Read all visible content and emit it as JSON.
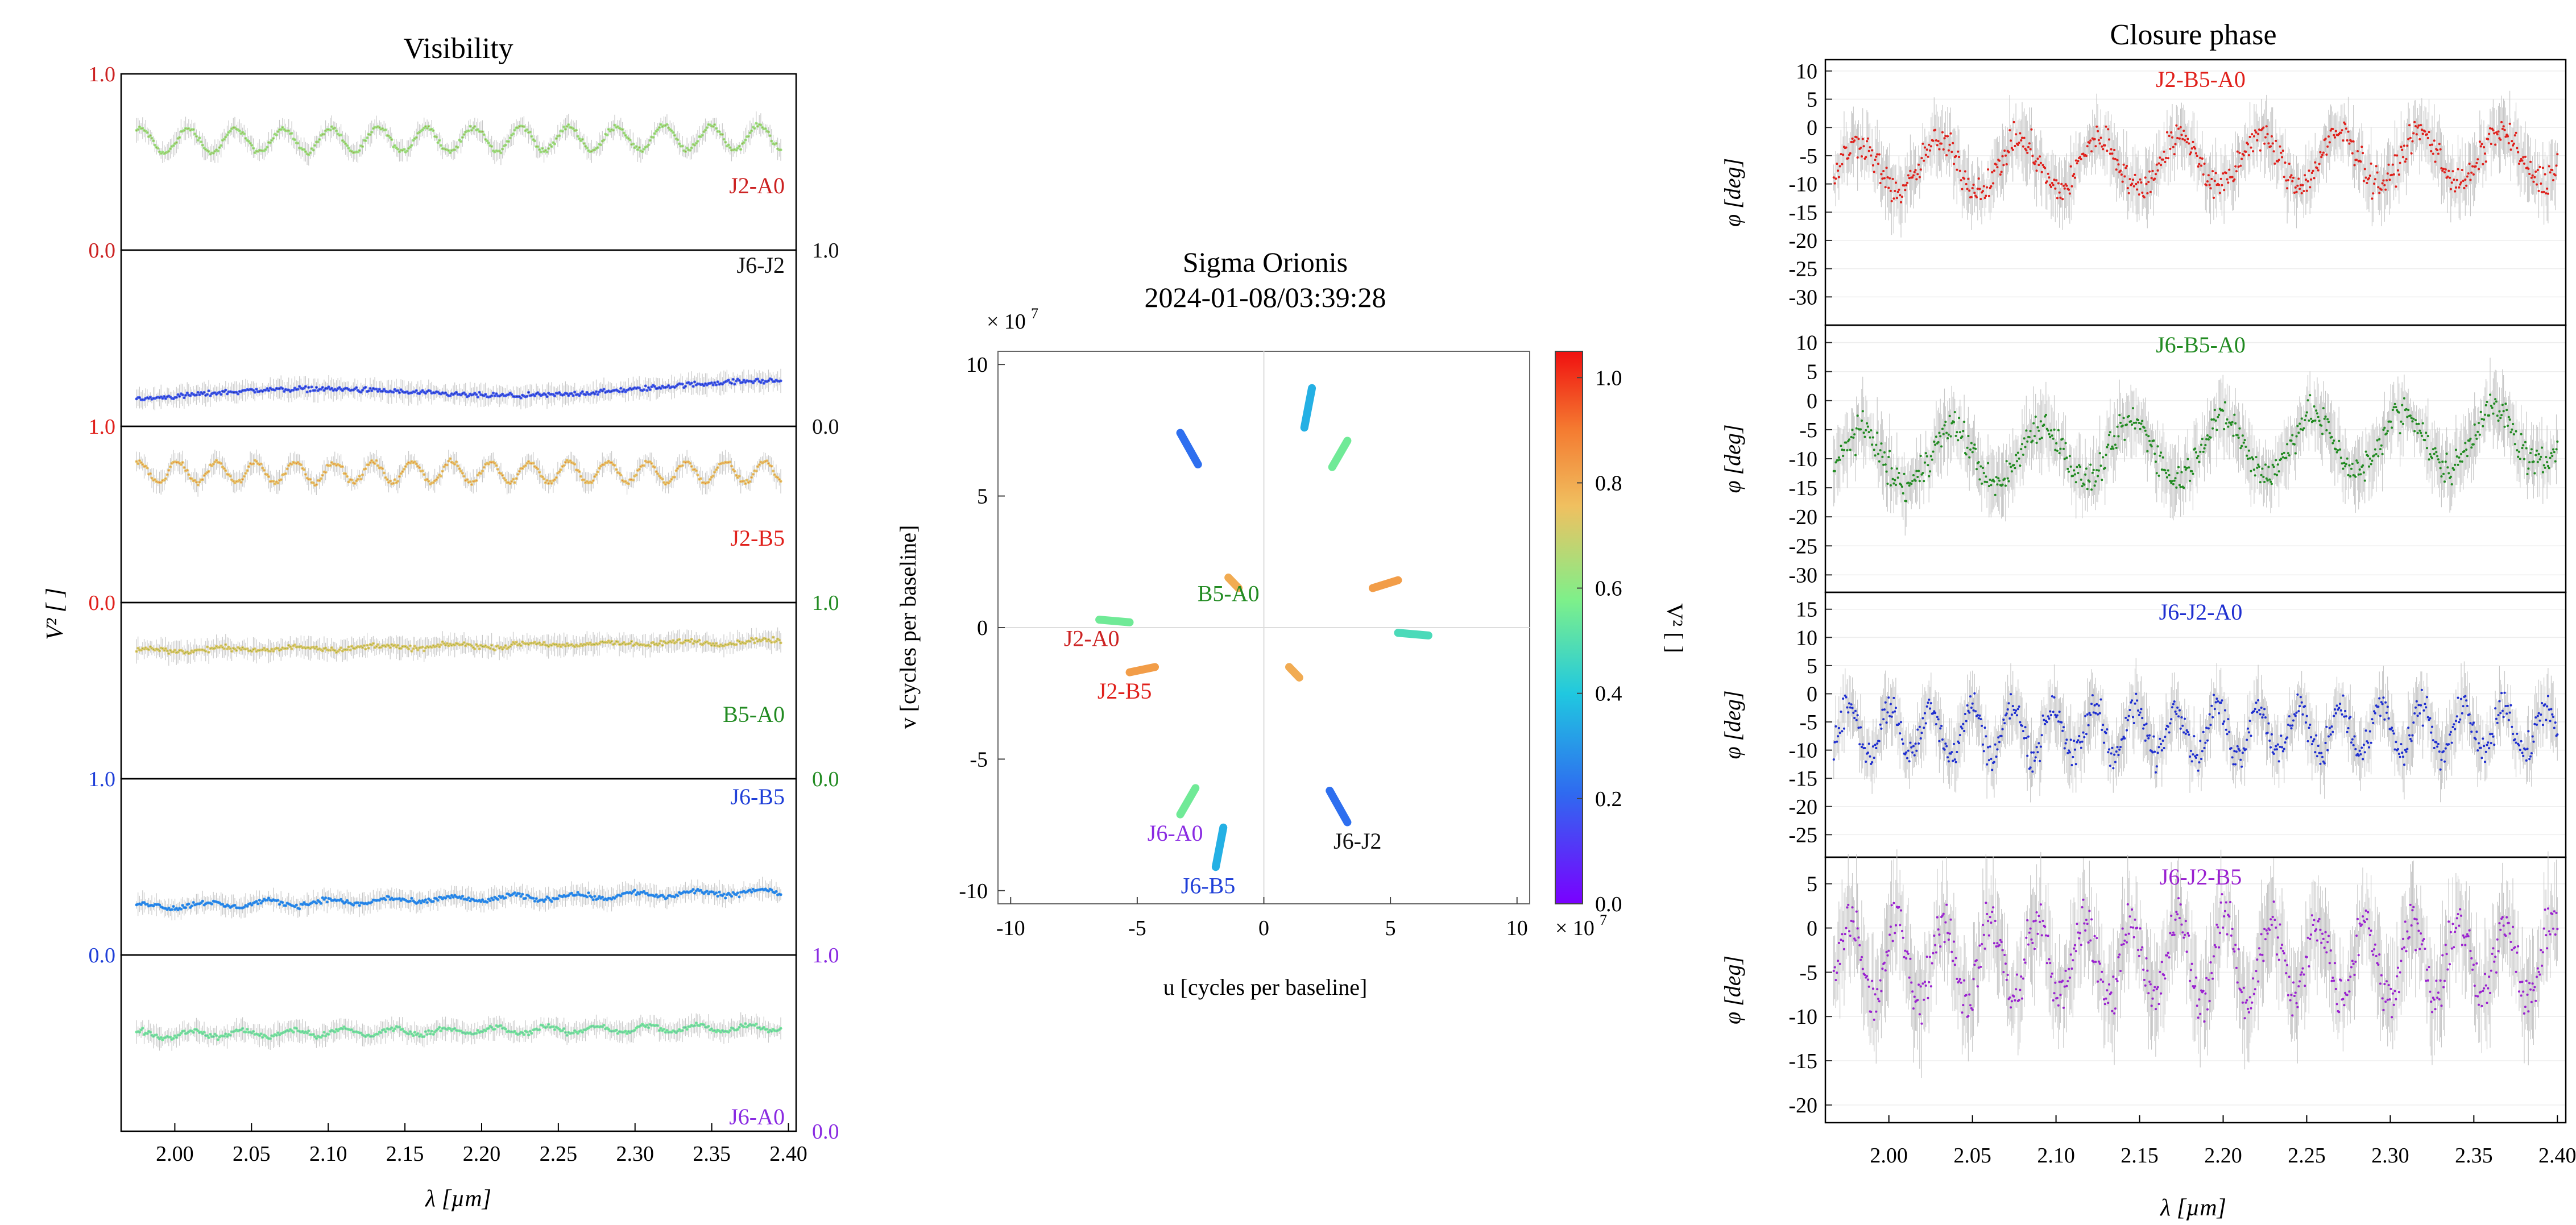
{
  "colors": {
    "J2-A0": "#cc2222",
    "J6-J2": "#111111",
    "J2-B5": "#e0201b",
    "B5-A0": "#228b22",
    "J6-B5": "#1f3fd8",
    "J6-A0": "#8a2be2",
    "cp_J2-B5-A0": "#e0201b",
    "cp_J6-B5-A0": "#228b22",
    "cp_J6-J2-A0": "#1f2fd0",
    "cp_J6-J2-B5": "#9a22d0",
    "errorbar": "#c8c8c8",
    "axis": "#000000"
  },
  "chart_data": [
    {
      "type": "scatter",
      "title": "Visibility",
      "xlabel": "λ [µm]",
      "ylabel": "V² [ ]",
      "xlim": [
        1.965,
        2.405
      ],
      "x_ticks": [
        "2.00",
        "2.05",
        "2.10",
        "2.15",
        "2.20",
        "2.25",
        "2.30",
        "2.35",
        "2.40"
      ],
      "grid": false,
      "panels": [
        {
          "name": "J2-A0",
          "color_key": "J2-A0",
          "ylim": [
            0.0,
            1.0
          ],
          "tick_side": "left",
          "tick_labels": [
            "0.0",
            "1.0"
          ],
          "mean_v2": 0.62,
          "amplitude": 0.07,
          "period_um": 0.031,
          "trend": 0.02
        },
        {
          "name": "J6-J2",
          "color_key": "J6-J2",
          "ylim": [
            0.0,
            1.0
          ],
          "tick_side": "right",
          "tick_labels": [
            "0.0",
            "1.0"
          ],
          "mean_v2": 0.17,
          "amplitude": 0.0,
          "period_um": 0.2,
          "trend": 0.06,
          "wave": 0.03
        },
        {
          "name": "J2-B5",
          "color_key": "J2-B5",
          "ylim": [
            0.0,
            1.0
          ],
          "tick_side": "left",
          "tick_labels": [
            "0.0",
            "1.0"
          ],
          "mean_v2": 0.74,
          "amplitude": 0.06,
          "period_um": 0.0255,
          "trend": 0.0
        },
        {
          "name": "B5-A0",
          "color_key": "B5-A0",
          "ylim": [
            0.0,
            1.0
          ],
          "tick_side": "right",
          "tick_labels": [
            "0.0",
            "1.0"
          ],
          "mean_v2": 0.73,
          "amplitude": 0.01,
          "period_um": 0.05,
          "trend": 0.05
        },
        {
          "name": "J6-B5",
          "color_key": "J6-B5",
          "ylim": [
            0.0,
            1.0
          ],
          "tick_side": "left",
          "tick_labels": [
            "0.0",
            "1.0"
          ],
          "mean_v2": 0.28,
          "amplitude": 0.015,
          "period_um": 0.04,
          "trend": 0.08
        },
        {
          "name": "J6-A0",
          "color_key": "J6-A0",
          "ylim": [
            0.0,
            1.0
          ],
          "tick_side": "right",
          "tick_labels": [
            "0.0",
            "1.0"
          ],
          "mean_v2": 0.55,
          "amplitude": 0.02,
          "period_um": 0.033,
          "trend": 0.04
        }
      ]
    },
    {
      "type": "scatter",
      "title": "Sigma Orionis",
      "subtitle": "2024-01-08/03:39:28",
      "xlabel": "u [cycles per baseline]",
      "ylabel": "v [cycles per baseline]",
      "scale_label": "× 10",
      "scale_exp": "7",
      "xlim": [
        -10.5,
        10.5
      ],
      "ylim": [
        -10.5,
        10.5
      ],
      "x_ticks": [
        -10,
        -5,
        0,
        5,
        10
      ],
      "y_ticks": [
        -10,
        -5,
        0,
        5,
        10
      ],
      "colorbar": {
        "label": "V² [ ]",
        "range": [
          0.0,
          1.05
        ],
        "ticks": [
          "0.0",
          "0.2",
          "0.4",
          "0.6",
          "0.8",
          "1.0"
        ]
      },
      "tracks": [
        {
          "u0": 1.9,
          "v0": 9.1,
          "u1": 1.6,
          "v1": 7.6,
          "v2s": 0.35
        },
        {
          "u0": 3.3,
          "v0": 7.1,
          "u1": 2.7,
          "v1": 6.1,
          "v2s": 0.55
        },
        {
          "u0": -3.3,
          "v0": 7.4,
          "u1": -2.6,
          "v1": 6.2,
          "v2s": 0.22
        },
        {
          "u0": -1.4,
          "v0": 1.9,
          "u1": -1.0,
          "v1": 1.5,
          "v2s": 0.8
        },
        {
          "u0": 4.3,
          "v0": 1.5,
          "u1": 5.3,
          "v1": 1.8,
          "v2s": 0.83
        },
        {
          "u0": 5.3,
          "v0": -0.2,
          "u1": 6.5,
          "v1": -0.3,
          "v2s": 0.48
        },
        {
          "u0": -6.5,
          "v0": 0.3,
          "u1": -5.3,
          "v1": 0.2,
          "v2s": 0.55
        },
        {
          "u0": -5.3,
          "v0": -1.7,
          "u1": -4.3,
          "v1": -1.5,
          "v2s": 0.83
        },
        {
          "u0": 1.0,
          "v0": -1.5,
          "u1": 1.4,
          "v1": -1.9,
          "v2s": 0.8
        },
        {
          "u0": -2.7,
          "v0": -6.1,
          "u1": -3.3,
          "v1": -7.1,
          "v2s": 0.55
        },
        {
          "u0": -1.6,
          "v0": -7.6,
          "u1": -1.9,
          "v1": -9.1,
          "v2s": 0.35
        },
        {
          "u0": 2.6,
          "v0": -6.2,
          "u1": 3.3,
          "v1": -7.4,
          "v2s": 0.22
        }
      ],
      "labels": [
        {
          "text": "B5-A0",
          "u": -1.4,
          "v": 1.0,
          "color_key": "B5-A0"
        },
        {
          "text": "J2-A0",
          "u": -6.8,
          "v": -0.7,
          "color_key": "J2-A0"
        },
        {
          "text": "J2-B5",
          "u": -5.5,
          "v": -2.7,
          "color_key": "J2-B5"
        },
        {
          "text": "J6-A0",
          "u": -3.5,
          "v": -8.1,
          "color_key": "J6-A0"
        },
        {
          "text": "J6-B5",
          "u": -2.2,
          "v": -10.1,
          "color_key": "J6-B5"
        },
        {
          "text": "J6-J2",
          "u": 3.7,
          "v": -8.4,
          "color_key": "J6-J2"
        }
      ]
    },
    {
      "type": "scatter",
      "title": "Closure phase",
      "xlabel": "λ [µm]",
      "ylabel": "φ [deg]",
      "xlim": [
        1.962,
        2.405
      ],
      "x_ticks": [
        "2.00",
        "2.05",
        "2.10",
        "2.15",
        "2.20",
        "2.25",
        "2.30",
        "2.35",
        "2.40"
      ],
      "grid": true,
      "panels": [
        {
          "name": "J2-B5-A0",
          "color_key": "cp_J2-B5-A0",
          "ylim": [
            -35,
            12
          ],
          "y_ticks": [
            10,
            5,
            0,
            -5,
            -10,
            -15,
            -20,
            -25,
            -30
          ],
          "mean": -7,
          "amplitude": 4.5,
          "period_um": 0.048,
          "trend": 2
        },
        {
          "name": "J6-B5-A0",
          "color_key": "cp_J6-B5-A0",
          "ylim": [
            -33,
            13
          ],
          "y_ticks": [
            10,
            5,
            0,
            -5,
            -10,
            -15,
            -20,
            -25,
            -30
          ],
          "mean": -10,
          "amplitude": 5,
          "period_um": 0.054,
          "trend": 4
        },
        {
          "name": "J6-J2-A0",
          "color_key": "cp_J6-J2-A0",
          "ylim": [
            -29,
            18
          ],
          "y_ticks": [
            15,
            10,
            5,
            0,
            -5,
            -10,
            -15,
            -20,
            -25
          ],
          "mean": -6.5,
          "amplitude": 4.5,
          "period_um": 0.0245,
          "trend": 0
        },
        {
          "name": "J6-J2-B5",
          "color_key": "cp_J6-J2-B5",
          "ylim": [
            -22,
            8
          ],
          "y_ticks": [
            5,
            0,
            -5,
            -10,
            -15,
            -20
          ],
          "mean": -3.5,
          "amplitude": 4.5,
          "period_um": 0.028,
          "trend": 0
        }
      ]
    }
  ]
}
